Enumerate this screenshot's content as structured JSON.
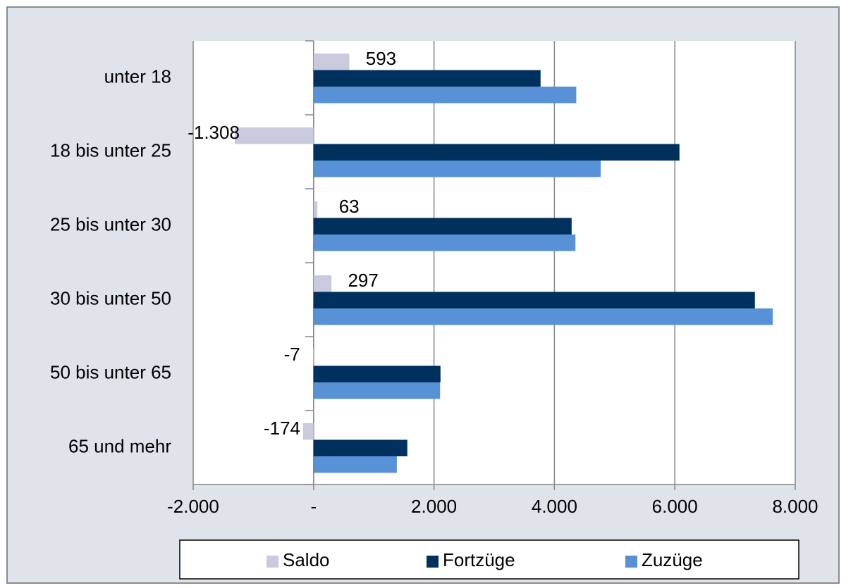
{
  "chart_data": {
    "type": "hbar",
    "categories": [
      "unter 18",
      "18 bis unter 25",
      "25 bis unter 30",
      "30 bis unter 50",
      "50 bis unter 65",
      "65  und mehr"
    ],
    "series": [
      {
        "name": "Saldo",
        "color": "#c9cade",
        "values": [
          593,
          -1308,
          63,
          297,
          -7,
          -174
        ],
        "value_labels": [
          "593",
          "-1.308",
          "63",
          "297",
          "-7",
          "-174"
        ]
      },
      {
        "name": "Fortzüge",
        "color": "#00305e",
        "values": [
          3770,
          6077,
          4286,
          7330,
          2108,
          1557
        ]
      },
      {
        "name": "Zuzüge",
        "color": "#5891d6",
        "values": [
          4363,
          4769,
          4349,
          7627,
          2101,
          1383
        ]
      }
    ],
    "xlim": [
      -2000,
      8000
    ],
    "xticks": [
      {
        "value": -2000,
        "label": "-2.000"
      },
      {
        "value": 0,
        "label": "-"
      },
      {
        "value": 2000,
        "label": "2.000"
      },
      {
        "value": 4000,
        "label": "4.000"
      },
      {
        "value": 6000,
        "label": "6.000"
      },
      {
        "value": 8000,
        "label": "8.000"
      }
    ],
    "grid": true,
    "legend": "bottom"
  }
}
